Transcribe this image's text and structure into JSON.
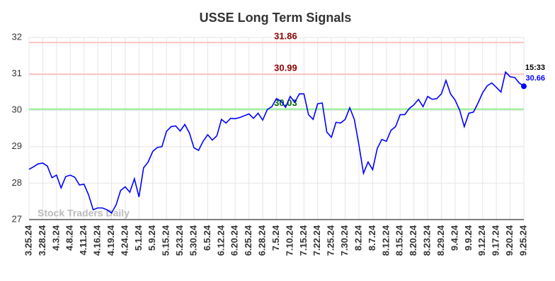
{
  "chart_data": {
    "type": "line",
    "title": "USSE Long Term Signals",
    "categories": [
      "3.25.24",
      null,
      null,
      "3.28.24",
      null,
      null,
      "4.3.24",
      null,
      null,
      "4.8.24",
      null,
      null,
      "4.11.24",
      null,
      null,
      "4.16.24",
      null,
      null,
      "4.19.24",
      null,
      null,
      "4.24.24",
      null,
      null,
      "5.1.24",
      null,
      null,
      "5.9.24",
      null,
      null,
      "5.15.24",
      null,
      null,
      "5.23.24",
      null,
      null,
      "5.30.24",
      null,
      null,
      "6.5.24",
      null,
      null,
      "6.12.24",
      null,
      null,
      "6.20.24",
      null,
      null,
      "6.25.24",
      null,
      null,
      "6.28.24",
      null,
      null,
      "7.5.24",
      null,
      null,
      "7.10.24",
      null,
      null,
      "7.15.24",
      null,
      null,
      "7.22.24",
      null,
      null,
      "7.25.24",
      null,
      null,
      "7.30.24",
      null,
      null,
      "8.2.24",
      null,
      null,
      "8.7.24",
      null,
      null,
      "8.12.24",
      null,
      null,
      "8.15.24",
      null,
      null,
      "8.20.24",
      null,
      null,
      "8.23.24",
      null,
      null,
      "8.29.24",
      null,
      null,
      "9.4.24",
      null,
      null,
      "9.9.24",
      null,
      null,
      "9.12.24",
      null,
      null,
      "9.17.24",
      null,
      null,
      "9.20.24",
      null,
      null,
      "9.25.24"
    ],
    "values": [
      28.38,
      28.45,
      28.53,
      28.55,
      28.47,
      28.15,
      28.22,
      27.87,
      28.18,
      28.22,
      28.16,
      27.95,
      27.97,
      27.68,
      27.27,
      27.32,
      27.32,
      27.27,
      27.18,
      27.4,
      27.8,
      27.9,
      27.75,
      28.12,
      27.62,
      28.42,
      28.58,
      28.87,
      28.98,
      29.0,
      29.42,
      29.55,
      29.57,
      29.43,
      29.61,
      29.38,
      28.97,
      28.9,
      29.15,
      29.33,
      29.18,
      29.3,
      29.75,
      29.65,
      29.78,
      29.77,
      29.8,
      29.85,
      29.9,
      29.78,
      29.92,
      29.73,
      30.02,
      30.1,
      30.32,
      30.25,
      30.08,
      30.38,
      30.22,
      30.45,
      30.45,
      29.88,
      29.75,
      30.18,
      30.2,
      29.4,
      29.26,
      29.67,
      29.65,
      29.75,
      30.07,
      29.75,
      29.05,
      28.27,
      28.58,
      28.37,
      28.95,
      29.2,
      29.15,
      29.45,
      29.55,
      29.88,
      29.88,
      30.05,
      30.15,
      30.3,
      30.1,
      30.38,
      30.3,
      30.32,
      30.45,
      30.82,
      30.45,
      30.28,
      30.0,
      29.55,
      29.92,
      29.95,
      30.2,
      30.48,
      30.67,
      30.75,
      30.63,
      30.5,
      31.05,
      30.92,
      30.9,
      30.75,
      30.66
    ],
    "color": "#0000ff",
    "ylim": [
      27,
      32
    ],
    "yticks": [
      27,
      28,
      29,
      30,
      31,
      32
    ],
    "grid": true,
    "hlines": [
      {
        "value": 31.86,
        "color": "#ffc0c0",
        "text_color": "#8b0000"
      },
      {
        "value": 30.99,
        "color": "#ffc0c0",
        "text_color": "#8b0000"
      },
      {
        "value": 30.03,
        "color": "#90ee90",
        "text_color": "#006400"
      }
    ],
    "annotation": "15:33",
    "watermark": "Stock Traders Daily"
  }
}
